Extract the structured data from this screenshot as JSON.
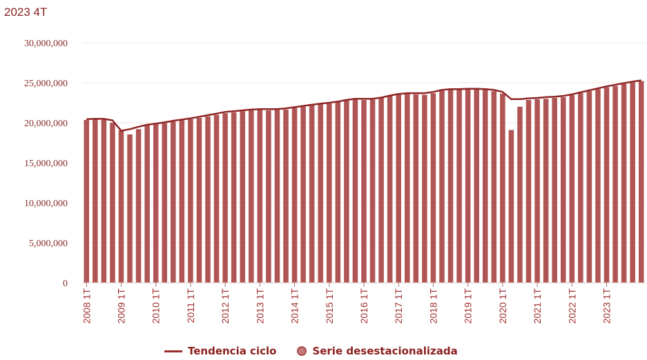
{
  "chart_data": {
    "type": "bar",
    "title": "2023 4T",
    "ylim": [
      0,
      30000000
    ],
    "yticks": [
      0,
      5000000,
      10000000,
      15000000,
      20000000,
      25000000,
      30000000
    ],
    "ytick_labels": [
      "0",
      "5,000,000",
      "10,000,000",
      "15,000,000",
      "20,000,000",
      "25,000,000",
      "30,000,000"
    ],
    "xtick_labels": [
      "2008 1T",
      "2009 1T",
      "2010 1T",
      "2011 1T",
      "2012 1T",
      "2013 1T",
      "2014 1T",
      "2015 1T",
      "2016 1T",
      "2017 1T",
      "2018 1T",
      "2019 1T",
      "2020 1T",
      "2021 1T",
      "2022 1T",
      "2023 1T"
    ],
    "legend": [
      "Tendencia ciclo",
      "Serie desestacionalizada"
    ],
    "bar_color": "#b05555",
    "line_color": "#8e2424",
    "series": [
      {
        "name": "Serie desestacionalizada",
        "kind": "bar",
        "values": [
          20350000,
          20450000,
          20380000,
          20000000,
          19050000,
          18550000,
          19200000,
          19700000,
          19800000,
          19950000,
          20150000,
          20300000,
          20450000,
          20600000,
          20800000,
          21000000,
          21200000,
          21300000,
          21450000,
          21550000,
          21600000,
          21550000,
          21600000,
          21650000,
          21850000,
          22000000,
          22200000,
          22300000,
          22400000,
          22600000,
          22800000,
          22900000,
          22850000,
          22900000,
          23150000,
          23350000,
          23600000,
          23600000,
          23550000,
          23500000,
          23700000,
          24000000,
          24100000,
          24200000,
          24250000,
          24200000,
          24100000,
          23950000,
          23650000,
          19100000,
          22000000,
          22850000,
          22950000,
          23000000,
          23100000,
          23200000,
          23450000,
          23700000,
          23950000,
          24200000,
          24450000,
          24600000,
          24850000,
          25050000,
          25200000
        ]
      },
      {
        "name": "Tendencia ciclo",
        "kind": "line",
        "values": [
          20450000,
          20500000,
          20480000,
          20300000,
          19000000,
          19200000,
          19500000,
          19750000,
          19900000,
          20050000,
          20250000,
          20400000,
          20550000,
          20750000,
          20950000,
          21150000,
          21350000,
          21450000,
          21550000,
          21650000,
          21700000,
          21700000,
          21700000,
          21800000,
          21950000,
          22100000,
          22250000,
          22400000,
          22500000,
          22650000,
          22850000,
          23000000,
          23000000,
          23000000,
          23150000,
          23400000,
          23600000,
          23700000,
          23700000,
          23700000,
          23850000,
          24100000,
          24200000,
          24200000,
          24250000,
          24250000,
          24200000,
          24100000,
          23850000,
          22950000,
          22950000,
          23050000,
          23100000,
          23200000,
          23250000,
          23350000,
          23550000,
          23800000,
          24050000,
          24300000,
          24550000,
          24750000,
          24950000,
          25150000,
          25300000
        ]
      }
    ]
  }
}
